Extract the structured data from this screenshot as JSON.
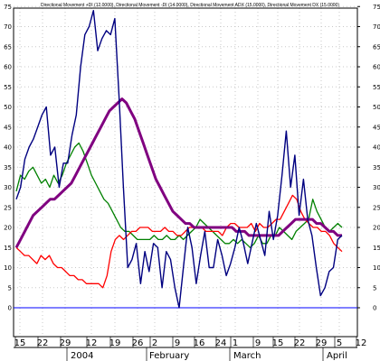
{
  "chart_data": {
    "type": "line",
    "title": "Directional Movement +DI (12.0000), Directional Movement -DI (14.0000), Directional Movement ADX (15.0000), Directional Movement DX (15.0000)",
    "ylim": [
      0,
      80
    ],
    "y_ticks": [
      0,
      5,
      10,
      15,
      20,
      25,
      30,
      35,
      40,
      45,
      50,
      55,
      60,
      65,
      70,
      75
    ],
    "y_tick_labels": [
      "0",
      "5",
      "10",
      "15",
      "20",
      "25",
      "30",
      "35",
      "40",
      "45",
      "50",
      "55",
      "60",
      "65",
      "70",
      "75"
    ],
    "x_tick_labels": [
      "15",
      "22",
      "29",
      "12",
      "19",
      "26",
      "2",
      "9",
      "16",
      "24",
      "1",
      "9",
      "15",
      "22",
      "29",
      "5",
      "12"
    ],
    "x_month_labels": [
      "2004",
      "February",
      "March",
      "April"
    ],
    "baseline_value": 0,
    "grid": true,
    "legend": "none",
    "series": [
      {
        "name": "Directional Movement +DI (12.0000)",
        "color": "#008000",
        "values": [
          29,
          33,
          32,
          34,
          35,
          33,
          31,
          32,
          30,
          33,
          31,
          33,
          36,
          38,
          40,
          41,
          39,
          36,
          33,
          31,
          29,
          27,
          26,
          24,
          22,
          20,
          19,
          19,
          18,
          17,
          17,
          17,
          17,
          18,
          17,
          17,
          18,
          17,
          17,
          18,
          17,
          18,
          19,
          20,
          22,
          21,
          20,
          19,
          18,
          17,
          16,
          16,
          17,
          16,
          17,
          16,
          15,
          16,
          18,
          16,
          16,
          18,
          18,
          20,
          19,
          18,
          17,
          19,
          20,
          21,
          22,
          27,
          24,
          22,
          20,
          19,
          20,
          21,
          20
        ]
      },
      {
        "name": "Directional Movement -DI (14.0000)",
        "color": "#ff0000",
        "values": [
          15,
          14,
          13,
          13,
          12,
          11,
          13,
          12,
          13,
          11,
          10,
          10,
          9,
          8,
          8,
          7,
          7,
          6,
          6,
          6,
          6,
          5,
          8,
          14,
          17,
          18,
          17,
          18,
          19,
          19,
          20,
          20,
          20,
          19,
          19,
          19,
          20,
          19,
          19,
          18,
          18,
          19,
          20,
          20,
          20,
          20,
          19,
          19,
          19,
          19,
          18,
          20,
          21,
          21,
          20,
          20,
          20,
          21,
          19,
          21,
          20,
          20,
          21,
          22,
          22,
          24,
          26,
          28,
          27,
          24,
          22,
          21,
          20,
          20,
          19,
          19,
          18,
          16,
          15,
          14
        ]
      },
      {
        "name": "Directional Movement ADX (15.0000)",
        "color": "#800080",
        "values": [
          15,
          17,
          19,
          21,
          23,
          24,
          25,
          26,
          27,
          27,
          28,
          29,
          30,
          31,
          33,
          35,
          37,
          39,
          41,
          43,
          45,
          47,
          49,
          50,
          51,
          52,
          51,
          49,
          47,
          44,
          41,
          38,
          35,
          32,
          30,
          28,
          26,
          24,
          23,
          22,
          21,
          21,
          20,
          20,
          20,
          20,
          20,
          20,
          20,
          20,
          20,
          20,
          19,
          19,
          19,
          18,
          18,
          18,
          18,
          18,
          18,
          18,
          18,
          19,
          20,
          21,
          22,
          22,
          22,
          22,
          22,
          21,
          21,
          20,
          19,
          19,
          18,
          18
        ]
      },
      {
        "name": "Directional Movement DX (15.0000)",
        "color": "#000080",
        "values": [
          27,
          30,
          37,
          40,
          42,
          45,
          48,
          50,
          38,
          40,
          30,
          36,
          36,
          43,
          48,
          60,
          68,
          70,
          74,
          64,
          67,
          69,
          68,
          72,
          52,
          30,
          10,
          12,
          16,
          6,
          14,
          9,
          16,
          15,
          5,
          14,
          12,
          5,
          0,
          10,
          20,
          15,
          6,
          13,
          19,
          10,
          10,
          17,
          13,
          8,
          11,
          15,
          20,
          16,
          11,
          16,
          21,
          17,
          13,
          24,
          17,
          23,
          33,
          44,
          30,
          38,
          23,
          32,
          22,
          18,
          10,
          3,
          5,
          9,
          10,
          17,
          18
        ]
      }
    ]
  }
}
